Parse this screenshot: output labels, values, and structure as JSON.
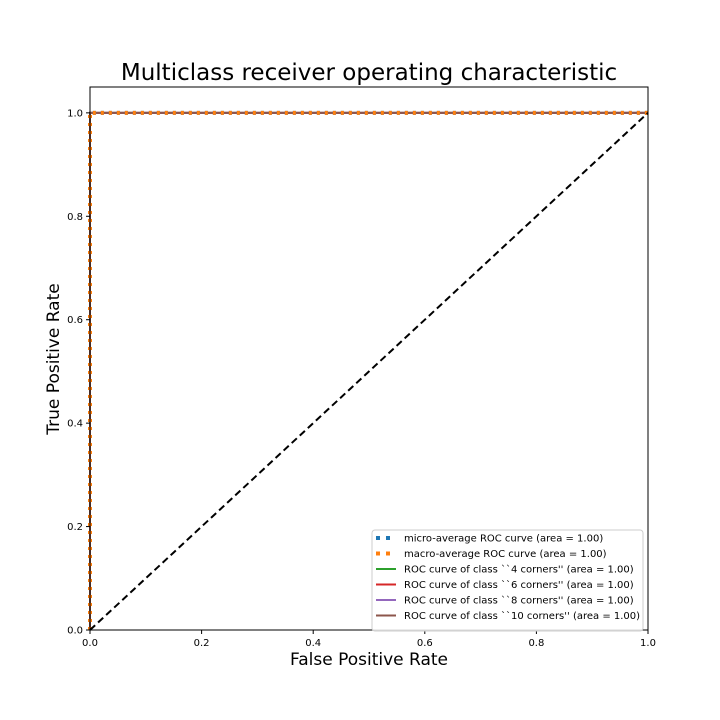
{
  "chart_data": {
    "type": "line",
    "title": "Multiclass receiver operating characteristic",
    "xlabel": "False Positive Rate",
    "ylabel": "True Positive Rate",
    "xlim": [
      0.0,
      1.0
    ],
    "ylim": [
      0.0,
      1.05
    ],
    "xticks": [
      0.0,
      0.2,
      0.4,
      0.6,
      0.8,
      1.0
    ],
    "xtick_labels": [
      "0.0",
      "0.2",
      "0.4",
      "0.6",
      "0.8",
      "1.0"
    ],
    "yticks": [
      0.0,
      0.2,
      0.4,
      0.6,
      0.8,
      1.0
    ],
    "ytick_labels": [
      "0.0",
      "0.2",
      "0.4",
      "0.6",
      "0.8",
      "1.0"
    ],
    "grid": false,
    "legend_position": "lower-right",
    "series": [
      {
        "name": "micro-average ROC curve (area = 1.00)",
        "color": "#1f77b4",
        "style": "dotted",
        "x": [
          0.0,
          0.0,
          1.0
        ],
        "y": [
          0.0,
          1.0,
          1.0
        ]
      },
      {
        "name": "macro-average ROC curve (area = 1.00)",
        "color": "#ff7f0e",
        "style": "dotted",
        "x": [
          0.0,
          0.0,
          1.0
        ],
        "y": [
          0.0,
          1.0,
          1.0
        ]
      },
      {
        "name": "ROC curve of class ``4 corners'' (area = 1.00)",
        "color": "#2ca02c",
        "style": "solid",
        "x": [
          0.0,
          0.0,
          1.0
        ],
        "y": [
          0.0,
          1.0,
          1.0
        ]
      },
      {
        "name": "ROC curve of class ``6 corners'' (area = 1.00)",
        "color": "#d62728",
        "style": "solid",
        "x": [
          0.0,
          0.0,
          1.0
        ],
        "y": [
          0.0,
          1.0,
          1.0
        ]
      },
      {
        "name": "ROC curve of class ``8 corners'' (area = 1.00)",
        "color": "#9467bd",
        "style": "solid",
        "x": [
          0.0,
          0.0,
          1.0
        ],
        "y": [
          0.0,
          1.0,
          1.0
        ]
      },
      {
        "name": "ROC curve of class ``10 corners'' (area = 1.00)",
        "color": "#8c564b",
        "style": "solid",
        "x": [
          0.0,
          0.0,
          1.0
        ],
        "y": [
          0.0,
          1.0,
          1.0
        ]
      }
    ],
    "reference_line": {
      "color": "#000000",
      "style": "dashed",
      "x": [
        0.0,
        1.0
      ],
      "y": [
        0.0,
        1.0
      ]
    }
  }
}
